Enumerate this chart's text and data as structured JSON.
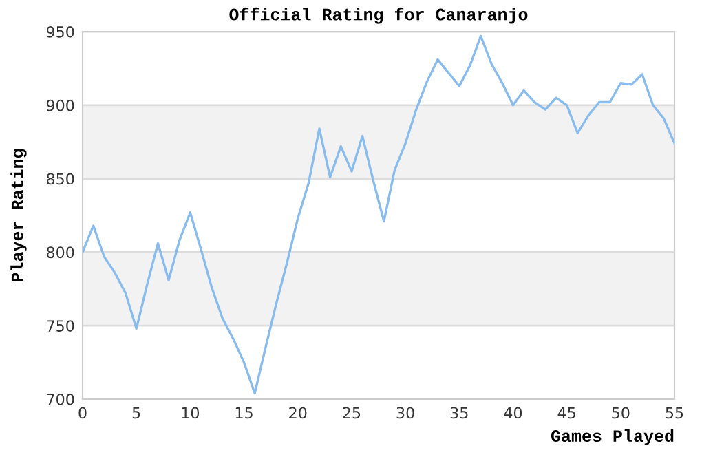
{
  "chart_data": {
    "type": "line",
    "title": "Official Rating for Canaranjo",
    "xlabel": "Games Played",
    "ylabel": "Player Rating",
    "x": [
      0,
      1,
      2,
      3,
      4,
      5,
      6,
      7,
      8,
      9,
      10,
      11,
      12,
      13,
      14,
      15,
      16,
      17,
      18,
      19,
      20,
      21,
      22,
      23,
      24,
      25,
      26,
      27,
      28,
      29,
      30,
      31,
      32,
      33,
      34,
      35,
      36,
      37,
      38,
      39,
      40,
      41,
      42,
      43,
      44,
      45,
      46,
      47,
      48,
      49,
      50,
      51,
      52,
      53,
      54,
      55
    ],
    "series": [
      {
        "color": "#88bbee",
        "values": [
          800,
          818,
          797,
          786,
          772,
          748,
          778,
          806,
          781,
          808,
          827,
          802,
          776,
          755,
          741,
          725,
          704,
          735,
          765,
          793,
          823,
          847,
          884,
          851,
          872,
          855,
          879,
          849,
          821,
          856,
          874,
          897,
          916,
          931,
          922,
          913,
          927,
          947,
          928,
          915,
          900,
          910,
          902,
          897,
          905,
          900,
          881,
          893,
          902,
          902,
          915,
          914,
          921,
          900,
          891,
          874
        ]
      }
    ],
    "xlim": [
      0,
      55
    ],
    "xticks": [
      0,
      5,
      10,
      15,
      20,
      25,
      30,
      35,
      40,
      45,
      50,
      55
    ],
    "ylim": [
      700,
      950
    ],
    "yticks": [
      700,
      750,
      800,
      850,
      900,
      950
    ],
    "bands": [
      {
        "axis": "y",
        "from": 750,
        "to": 800,
        "color": "#f2f2f2"
      },
      {
        "axis": "y",
        "from": 850,
        "to": 900,
        "color": "#f2f2f2"
      }
    ],
    "grid": "y",
    "marker": "none",
    "line_style": "solid"
  }
}
